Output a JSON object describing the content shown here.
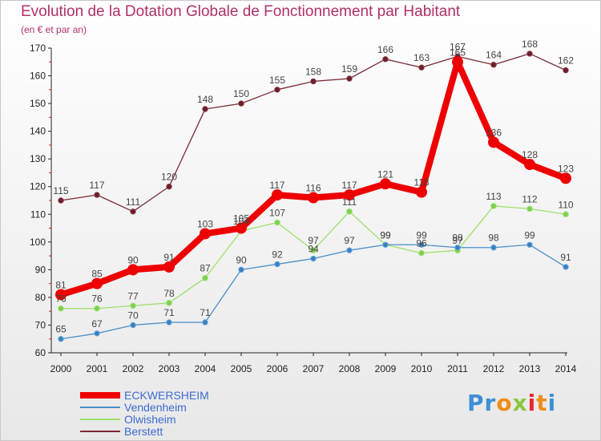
{
  "header": {
    "title": "Evolution de la Dotation Globale de Fonctionnement par Habitant",
    "subtitle": "(en € et par an)"
  },
  "logo": {
    "text": "Proxiti",
    "letters": [
      "P",
      "r",
      "o",
      "x",
      "i",
      "t",
      "i"
    ],
    "colors": [
      "#3e8fd6",
      "#3e8fd6",
      "#f08c1a",
      "#8cc63f",
      "#e8262f",
      "#f08c1a",
      "#3e8fd6"
    ]
  },
  "chart_data": {
    "type": "line",
    "title": "Evolution de la Dotation Globale de Fonctionnement par Habitant",
    "subtitle": "(en € et par an)",
    "xlabel": "",
    "ylabel": "",
    "x": [
      "2000",
      "2001",
      "2002",
      "2003",
      "2004",
      "2005",
      "2006",
      "2007",
      "2008",
      "2009",
      "2010",
      "2011",
      "2012",
      "2013",
      "2014"
    ],
    "ylim": [
      60,
      170
    ],
    "yticks": [
      60,
      70,
      80,
      90,
      100,
      110,
      120,
      130,
      140,
      150,
      160,
      170
    ],
    "grid": false,
    "legend_position": "bottom-left",
    "series": [
      {
        "name": "Berstett",
        "color": "#7b2a35",
        "values": [
          115,
          117,
          111,
          120,
          148,
          150,
          155,
          158,
          159,
          166,
          163,
          167,
          164,
          168,
          162
        ]
      },
      {
        "name": "Olwisheim",
        "color": "#9de06a",
        "values": [
          76,
          76,
          77,
          78,
          87,
          104,
          107,
          97,
          111,
          99,
          96,
          97,
          113,
          112,
          110
        ]
      },
      {
        "name": "Vendenheim",
        "color": "#4a8fc8",
        "values": [
          65,
          67,
          70,
          71,
          71,
          90,
          92,
          94,
          97,
          99,
          99,
          98,
          98,
          99,
          91
        ]
      },
      {
        "name": "ECKWERSHEIM",
        "color": "#ee0000",
        "values": [
          81,
          85,
          90,
          91,
          103,
          105,
          117,
          116,
          117,
          121,
          118,
          165,
          136,
          128,
          123
        ]
      }
    ],
    "legend_order": [
      "ECKWERSHEIM",
      "Vendenheim",
      "Olwisheim",
      "Berstett"
    ]
  }
}
